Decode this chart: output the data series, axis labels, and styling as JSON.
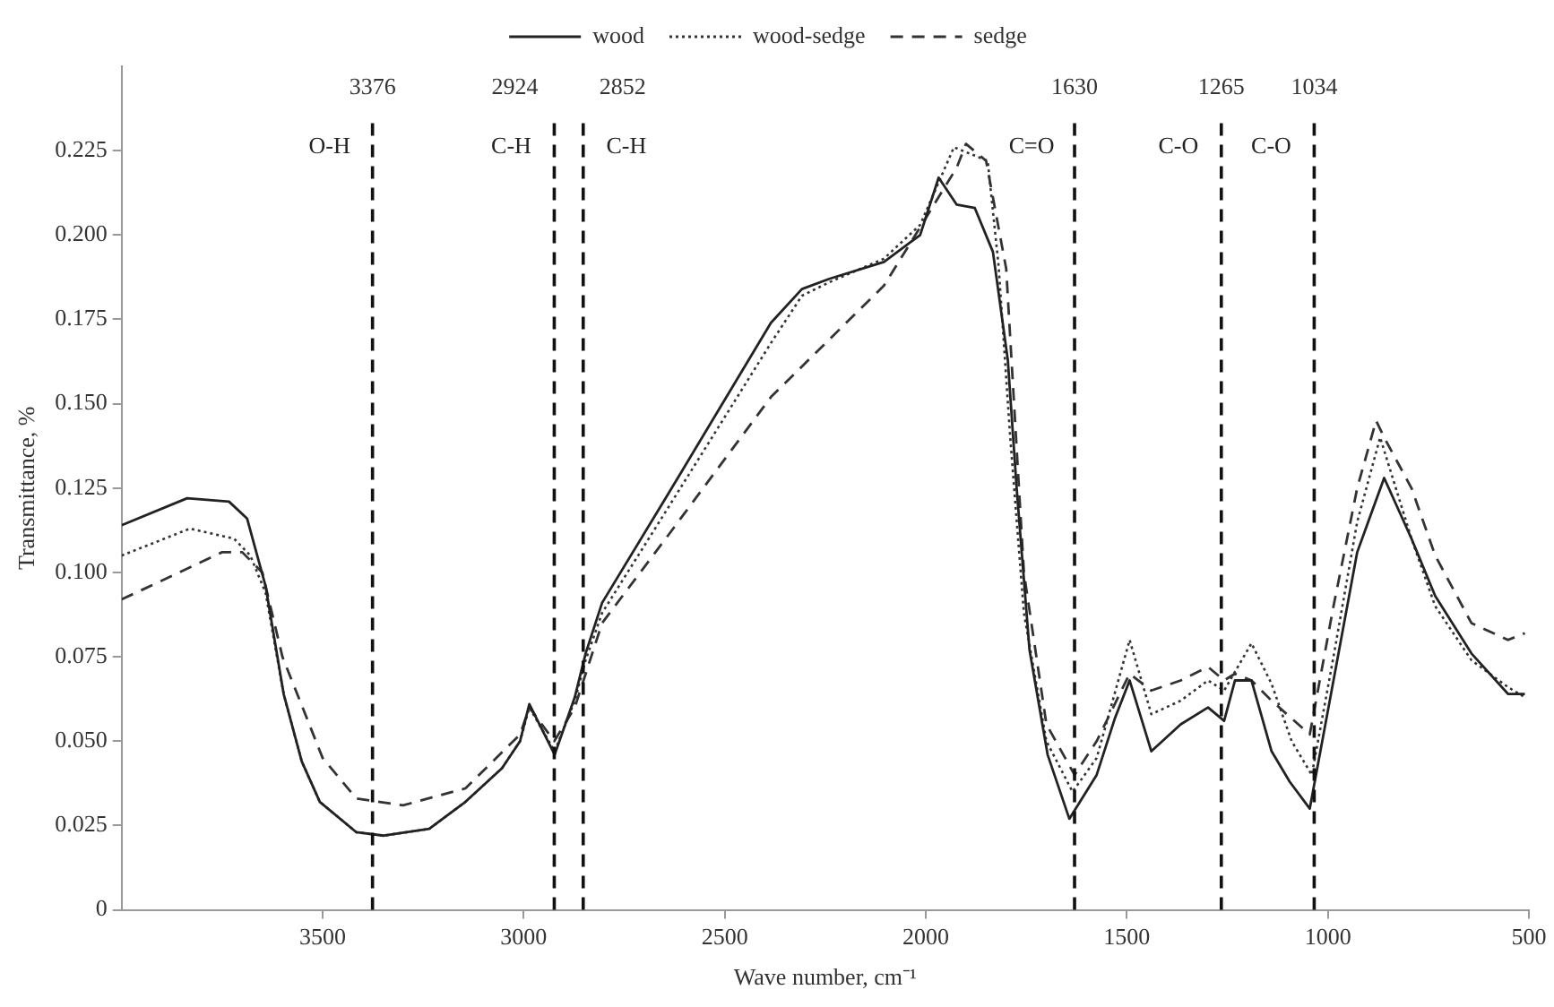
{
  "chart_data": {
    "type": "line",
    "xlabel": "Wave number, cm⁻¹",
    "ylabel": "Transmittance, %",
    "xlim": [
      4000,
      500
    ],
    "xticks": [
      3500,
      3000,
      2500,
      2000,
      1500,
      1000,
      500
    ],
    "ylim": [
      0,
      0.25
    ],
    "yticks": [
      0,
      0.025,
      {
        "value": 0.05,
        "label": "0.050"
      },
      0.075,
      {
        "value": 0.1,
        "label": "0.100"
      },
      0.125,
      {
        "value": 0.15,
        "label": "0.150"
      },
      0.175,
      {
        "value": 0.2,
        "label": "0.200"
      },
      0.225
    ],
    "grid": false,
    "legend": "top",
    "marker": "none",
    "series": [
      {
        "name": "wood",
        "color": "#222222",
        "line_style": "solid",
        "x": [
          4000,
          3837,
          3733,
          3688,
          3642,
          3597,
          3552,
          3507,
          3416,
          3348,
          3235,
          3145,
          3054,
          3009,
          2986,
          2923,
          2873,
          2846,
          2805,
          2647,
          2385,
          2308,
          2240,
          2104,
          2014,
          1968,
          1923,
          1878,
          1833,
          1796,
          1774,
          1742,
          1697,
          1643,
          1575,
          1529,
          1493,
          1439,
          1366,
          1298,
          1258,
          1231,
          1190,
          1140,
          1095,
          1045,
          986,
          927,
          860,
          792,
          733,
          643,
          552,
          510
        ],
        "values": [
          0.114,
          0.122,
          0.121,
          0.116,
          0.096,
          0.064,
          0.044,
          0.032,
          0.023,
          0.022,
          0.024,
          0.032,
          0.042,
          0.05,
          0.061,
          0.046,
          0.063,
          0.076,
          0.091,
          0.122,
          0.174,
          0.184,
          0.187,
          0.192,
          0.2,
          0.217,
          0.209,
          0.208,
          0.195,
          0.163,
          0.125,
          0.077,
          0.046,
          0.027,
          0.04,
          0.057,
          0.068,
          0.047,
          0.055,
          0.06,
          0.056,
          0.068,
          0.068,
          0.047,
          0.038,
          0.03,
          0.068,
          0.106,
          0.128,
          0.11,
          0.093,
          0.076,
          0.064,
          0.064
        ]
      },
      {
        "name": "wood-sedge",
        "color": "#333333",
        "line_style": "dotted",
        "x": [
          4000,
          3830,
          3720,
          3680,
          3642,
          3597,
          3552,
          3507,
          3416,
          3348,
          3235,
          3145,
          3054,
          3009,
          2986,
          2923,
          2873,
          2846,
          2805,
          2647,
          2385,
          2308,
          2240,
          2104,
          2014,
          1930,
          1846,
          1819,
          1790,
          1756,
          1700,
          1635,
          1575,
          1493,
          1439,
          1366,
          1298,
          1258,
          1190,
          1140,
          1090,
          1040,
          986,
          927,
          870,
          792,
          733,
          643,
          552,
          510
        ],
        "values": [
          0.105,
          0.113,
          0.11,
          0.105,
          0.094,
          0.064,
          0.044,
          0.032,
          0.023,
          0.022,
          0.024,
          0.032,
          0.042,
          0.05,
          0.06,
          0.047,
          0.062,
          0.074,
          0.088,
          0.118,
          0.168,
          0.182,
          0.186,
          0.193,
          0.203,
          0.226,
          0.222,
          0.191,
          0.14,
          0.088,
          0.05,
          0.035,
          0.045,
          0.08,
          0.058,
          0.062,
          0.068,
          0.065,
          0.079,
          0.067,
          0.05,
          0.04,
          0.075,
          0.115,
          0.14,
          0.11,
          0.09,
          0.074,
          0.066,
          0.063
        ]
      },
      {
        "name": "sedge",
        "color": "#333333",
        "line_style": "dashed",
        "x": [
          4000,
          3750,
          3700,
          3650,
          3600,
          3500,
          3416,
          3300,
          3145,
          3009,
          2986,
          2924,
          2873,
          2805,
          2647,
          2385,
          2104,
          2000,
          1923,
          1900,
          1850,
          1800,
          1756,
          1700,
          1630,
          1575,
          1493,
          1439,
          1366,
          1298,
          1258,
          1231,
          1190,
          1140,
          1045,
          986,
          927,
          880,
          860,
          792,
          733,
          643,
          552,
          510
        ],
        "values": [
          0.092,
          0.106,
          0.106,
          0.1,
          0.075,
          0.045,
          0.033,
          0.031,
          0.036,
          0.052,
          0.06,
          0.05,
          0.06,
          0.085,
          0.11,
          0.152,
          0.185,
          0.205,
          0.22,
          0.227,
          0.222,
          0.19,
          0.1,
          0.055,
          0.04,
          0.05,
          0.07,
          0.065,
          0.068,
          0.072,
          0.068,
          0.07,
          0.068,
          0.062,
          0.052,
          0.09,
          0.125,
          0.145,
          0.14,
          0.125,
          0.105,
          0.085,
          0.08,
          0.082
        ]
      }
    ],
    "ref_lines": [
      {
        "axis": "x",
        "value": 3376,
        "label": "3376",
        "line_style": "dashed",
        "color": "#111111"
      },
      {
        "axis": "x",
        "value": 2924,
        "label": "2924",
        "line_style": "dashed",
        "color": "#111111"
      },
      {
        "axis": "x",
        "value": 2852,
        "label": "2852",
        "line_style": "dashed",
        "color": "#111111"
      },
      {
        "axis": "x",
        "value": 1630,
        "label": "1630",
        "line_style": "dashed",
        "color": "#111111"
      },
      {
        "axis": "x",
        "value": 1265,
        "label": "1265",
        "line_style": "dashed",
        "color": "#111111"
      },
      {
        "axis": "x",
        "value": 1034,
        "label": "1034",
        "line_style": "dashed",
        "color": "#111111"
      }
    ],
    "annotations": [
      "O-H",
      "C-H",
      "C-H",
      "C=O",
      "C-O",
      "C-O"
    ]
  }
}
